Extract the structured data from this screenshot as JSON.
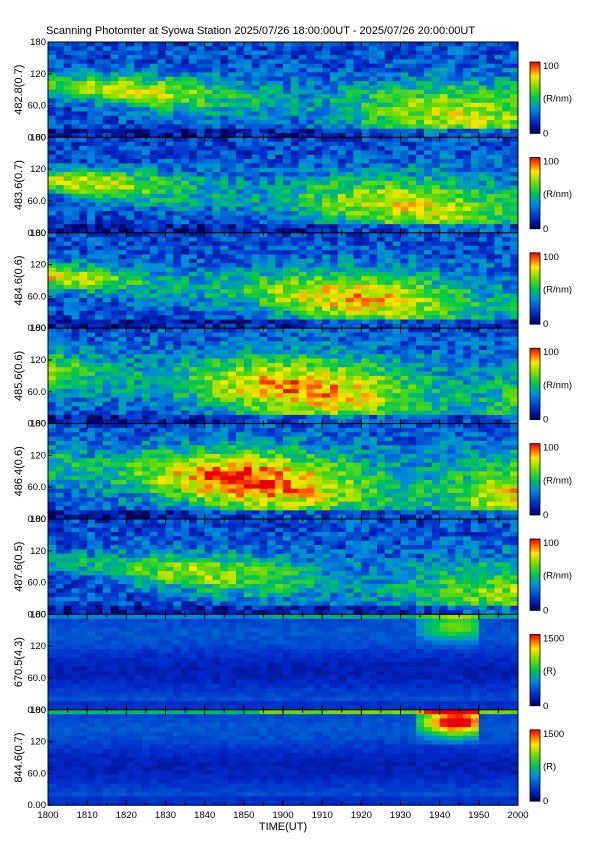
{
  "title": "Scanning Photomter at Syowa Station  2025/07/26 18:00:00UT - 2025/07/26 20:00:00UT",
  "x_axis": {
    "label": "TIME(UT)",
    "ticks": [
      "1800",
      "1810",
      "1820",
      "1830",
      "1840",
      "1850",
      "1900",
      "1910",
      "1920",
      "1930",
      "1940",
      "1950",
      "2000"
    ]
  },
  "chart_data": {
    "type": "heatmap",
    "x_range_ut": [
      "1800",
      "2000"
    ],
    "y_ticks": [
      "0.00",
      "60.0",
      "120",
      "180"
    ],
    "y_range_deg": [
      0,
      180
    ],
    "panels": [
      {
        "channel": "482.8(0.7)",
        "unit": "(R/nm)",
        "cmin": "0",
        "cmax": "100"
      },
      {
        "channel": "483.6(0.7)",
        "unit": "(R/nm)",
        "cmin": "0",
        "cmax": "100"
      },
      {
        "channel": "484.6(0.6)",
        "unit": "(R/nm)",
        "cmin": "0",
        "cmax": "100"
      },
      {
        "channel": "485.6(0.6)",
        "unit": "(R/nm)",
        "cmin": "0",
        "cmax": "100"
      },
      {
        "channel": "486.4(0.6)",
        "unit": "(R/nm)",
        "cmin": "0",
        "cmax": "100"
      },
      {
        "channel": "487.6(0.5)",
        "unit": "(R/nm)",
        "cmin": "0",
        "cmax": "100"
      },
      {
        "channel": "670.5(4.3)",
        "unit": "(R)",
        "cmin": "0",
        "cmax": "1500"
      },
      {
        "channel": "844.6(0.7)",
        "unit": "(R)",
        "cmin": "0",
        "cmax": "1500"
      }
    ]
  }
}
